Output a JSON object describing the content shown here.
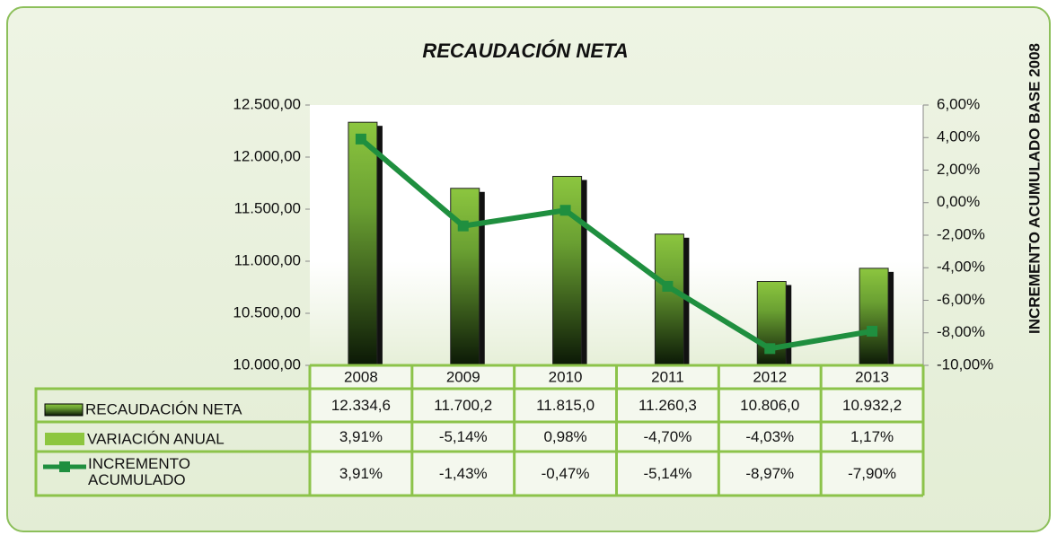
{
  "chart_data": {
    "type": "bar",
    "title": "RECAUDACIÓN NETA",
    "y2_label": "INCREMENTO ACUMULADO BASE 2008",
    "categories": [
      "2008",
      "2009",
      "2010",
      "2011",
      "2012",
      "2013"
    ],
    "series": [
      {
        "name": "RECAUDACIÓN NETA",
        "color": "#7fbf3f",
        "type": "bar",
        "values": [
          12334.6,
          11700.2,
          11815.0,
          11260.3,
          10806.0,
          10932.2
        ],
        "value_labels": [
          "12.334,6",
          "11.700,2",
          "11.815,0",
          "11.260,3",
          "10.806,0",
          "10.932,2"
        ]
      },
      {
        "name": "VARIACIÓN ANUAL",
        "color": "#8dc63f",
        "type": "table",
        "values": [
          3.91,
          -5.14,
          0.98,
          -4.7,
          -4.03,
          1.17
        ],
        "value_labels": [
          "3,91%",
          "-5,14%",
          "0,98%",
          "-4,70%",
          "-4,03%",
          "1,17%"
        ]
      },
      {
        "name": "INCREMENTO ACUMULADO",
        "color": "#1f8f3f",
        "type": "line",
        "axis": "y2",
        "values": [
          3.91,
          -1.43,
          -0.47,
          -5.14,
          -8.97,
          -7.9
        ],
        "value_labels": [
          "3,91%",
          "-1,43%",
          "-0,47%",
          "-5,14%",
          "-8,97%",
          "-7,90%"
        ]
      }
    ],
    "ylim": [
      10000,
      12500
    ],
    "yticks": [
      {
        "value": 10000,
        "label": "10.000,00"
      },
      {
        "value": 10500,
        "label": "10.500,00"
      },
      {
        "value": 11000,
        "label": "11.000,00"
      },
      {
        "value": 11500,
        "label": "11.500,00"
      },
      {
        "value": 12000,
        "label": "12.000,00"
      },
      {
        "value": 12500,
        "label": "12.500,00"
      }
    ],
    "y2lim": [
      -10,
      6
    ],
    "y2ticks": [
      {
        "value": -10,
        "label": "-10,00%"
      },
      {
        "value": -8,
        "label": "-8,00%"
      },
      {
        "value": -6,
        "label": "-6,00%"
      },
      {
        "value": -4,
        "label": "-4,00%"
      },
      {
        "value": -2,
        "label": "-2,00%"
      },
      {
        "value": 0,
        "label": "0,00%"
      },
      {
        "value": 2,
        "label": "2,00%"
      },
      {
        "value": 4,
        "label": "4,00%"
      },
      {
        "value": 6,
        "label": "6,00%"
      }
    ]
  }
}
